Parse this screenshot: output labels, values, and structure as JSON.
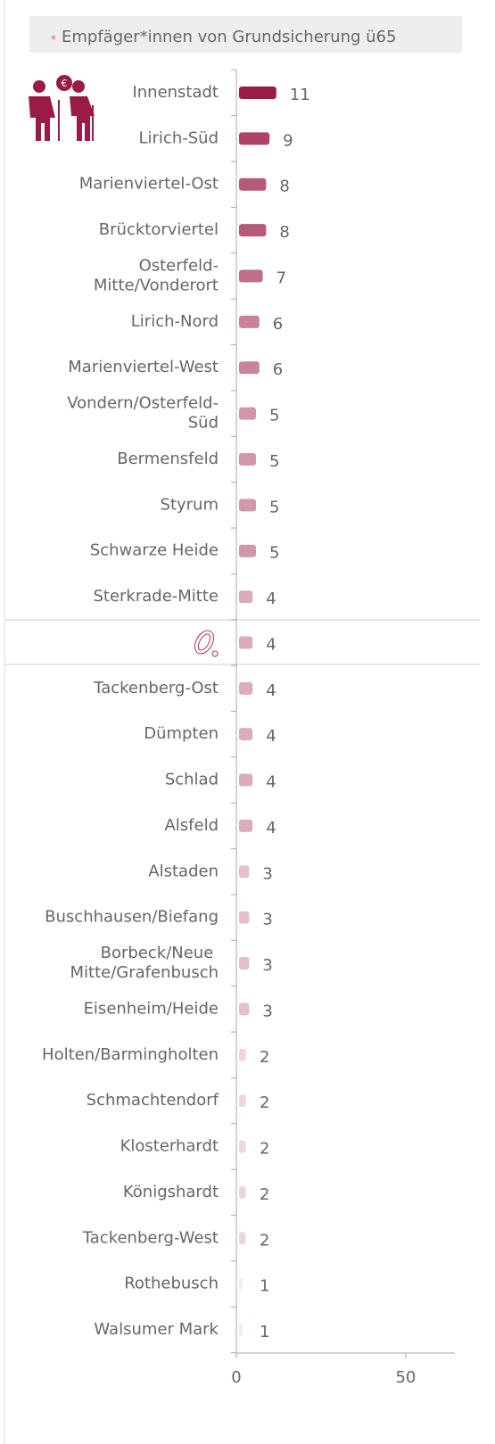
{
  "chart_data": {
    "type": "barh",
    "series": [
      {
        "name": "Empfäger*innen von Grundsicherung ü65",
        "color": "#9b1b47",
        "values": [
          11,
          9,
          8,
          8,
          7,
          6,
          6,
          5,
          5,
          5,
          5,
          4,
          4,
          4,
          4,
          4,
          4,
          3,
          3,
          3,
          3,
          2,
          2,
          2,
          2,
          2,
          1,
          1
        ]
      }
    ],
    "categories": [
      "Innenstadt",
      "Lirich-Süd",
      "Marienviertel-Ost",
      "Brücktorviertel",
      "Osterfeld-Mitte/Vonderort",
      "Lirich-Nord",
      "Marienviertel-West",
      "Vondern/Osterfeld-Süd",
      "Bermensfeld",
      "Styrum",
      "Schwarze Heide",
      "Sterkrade-Mitte",
      null,
      "Tackenberg-Ost",
      "Dümpten",
      "Schlad",
      "Alsfeld",
      "Alstaden",
      "Buschhausen/Biefang",
      "Borbeck/Neue Mitte/Grafenbusch",
      "Eisenheim/Heide",
      "Holten/Barmingholten",
      "Schmachtendorf",
      "Klosterhardt",
      "Königshardt",
      "Tackenberg-West",
      "Rothebusch",
      "Walsumer Mark"
    ],
    "xlim": [
      0,
      64.5
    ],
    "xticks": [
      0,
      50
    ]
  }
}
